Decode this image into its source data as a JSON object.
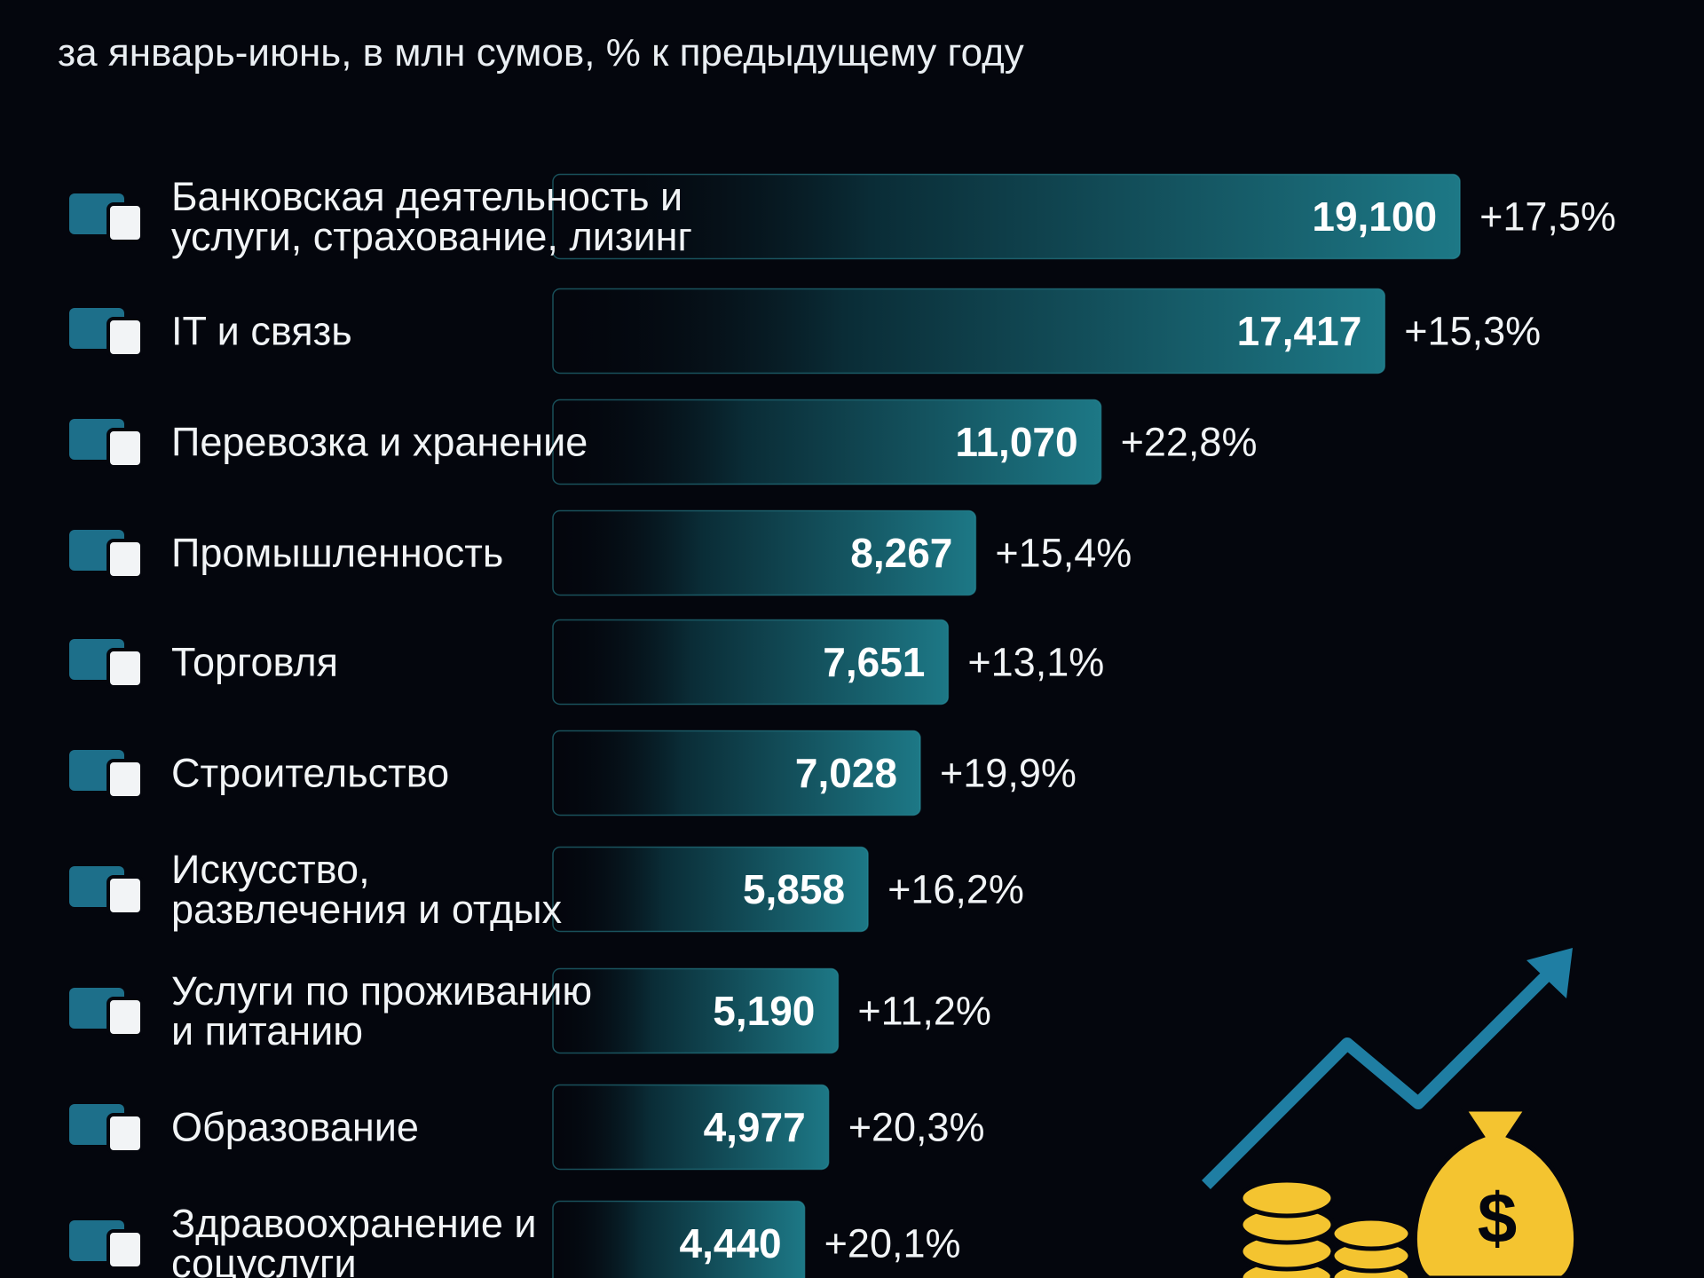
{
  "chart_data": {
    "type": "bar",
    "orientation": "horizontal",
    "subtitle": "за январь-июнь, в млн сумов, % к предыдущему году",
    "categories": [
      "Банковская деятельность и\nуслуги, страхование, лизинг",
      "IT и связь",
      "Перевозка и хранение",
      "Промышленность",
      "Торговля",
      "Строительство",
      "Искусство,\nразвлечения и отдых",
      "Услуги по проживанию\nи питанию",
      "Образование",
      "Здравоохранение и\nсоцуслуги"
    ],
    "values": [
      19100,
      17417,
      11070,
      8267,
      7651,
      7028,
      5858,
      5190,
      4977,
      4440
    ],
    "value_labels": [
      "19,100",
      "17,417",
      "11,070",
      "8,267",
      "7,651",
      "7,028",
      "5,858",
      "5,190",
      "4,977",
      "4,440"
    ],
    "changes": [
      "+17,5%",
      "+15,3%",
      "+22,8%",
      "+15,4%",
      "+13,1%",
      "+19,9%",
      "+16,2%",
      "+11,2%",
      "+20,3%",
      "+20,1%"
    ],
    "color": "#1b7482"
  }
}
